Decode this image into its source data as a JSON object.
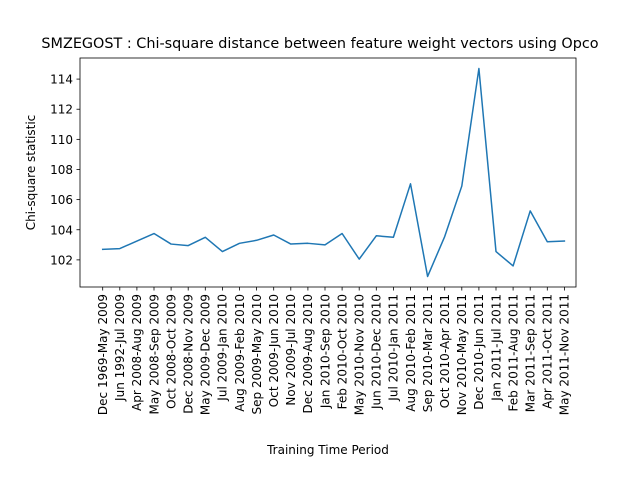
{
  "chart_data": {
    "type": "line",
    "title": "SMZEGOST : Chi-square distance between feature weight vectors using Opco",
    "xlabel": "Training Time Period",
    "ylabel": "Chi-square statistic",
    "ylim": [
      100.2,
      115.4
    ],
    "yticks": [
      102,
      104,
      106,
      108,
      110,
      112,
      114
    ],
    "grid": false,
    "legend": "none",
    "categories": [
      "Dec 1969-May 2009",
      "Jun 1992-Jul 2009",
      "Apr 2008-Aug 2009",
      "May 2008-Sep 2009",
      "Oct 2008-Oct 2009",
      "Dec 2008-Nov 2009",
      "May 2009-Dec 2009",
      "Jul 2009-Jan 2010",
      "Aug 2009-Feb 2010",
      "Sep 2009-May 2010",
      "Oct 2009-Jun 2010",
      "Nov 2009-Jul 2010",
      "Dec 2009-Aug 2010",
      "Jan 2010-Sep 2010",
      "Feb 2010-Oct 2010",
      "May 2010-Nov 2010",
      "Jun 2010-Dec 2010",
      "Jul 2010-Jan 2011",
      "Aug 2010-Feb 2011",
      "Sep 2010-Mar 2011",
      "Oct 2010-Apr 2011",
      "Nov 2010-May 2011",
      "Dec 2010-Jun 2011",
      "Jan 2011-Jul 2011",
      "Feb 2011-Aug 2011",
      "Mar 2011-Sep 2011",
      "Apr 2011-Oct 2011",
      "May 2011-Nov 2011"
    ],
    "series": [
      {
        "color": "#1f77b4",
        "values": [
          102.7,
          102.75,
          103.25,
          103.75,
          103.05,
          102.95,
          103.5,
          102.55,
          103.1,
          103.3,
          103.65,
          103.05,
          103.1,
          103.0,
          103.75,
          102.05,
          103.6,
          103.5,
          107.05,
          100.9,
          103.55,
          106.9,
          114.7,
          102.55,
          101.6,
          105.25,
          103.2,
          103.25
        ]
      }
    ]
  }
}
